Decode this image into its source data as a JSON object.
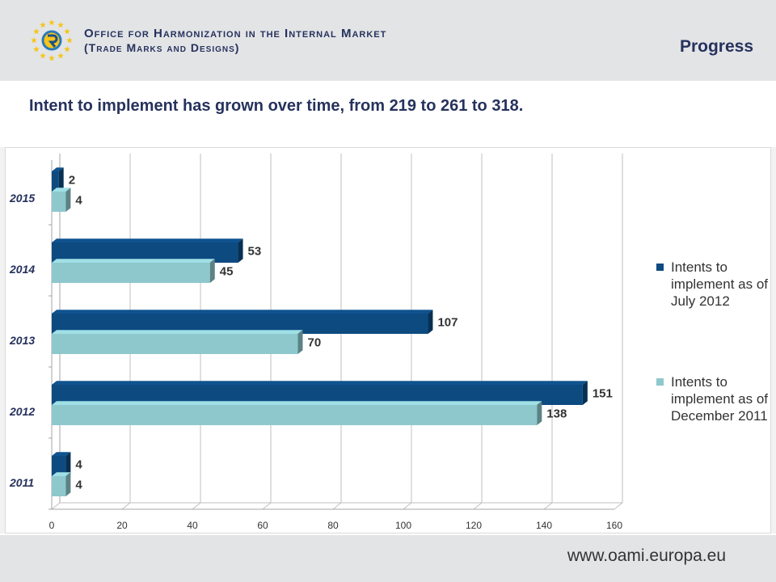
{
  "header": {
    "org_line_1": "Office for Harmonization in the Internal Market",
    "org_line_2": "(Trade Marks and Designs)",
    "section_title": "Progress"
  },
  "subtitle": "Intent to implement has grown over time, from 219 to 261 to 318.",
  "footer": {
    "url": "www.oami.europa.eu"
  },
  "colors": {
    "series_dark": "#0d4a80",
    "series_light": "#8ec8cd",
    "header_bg": "#e3e4e6",
    "title_text": "#26325d"
  },
  "chart_data": {
    "type": "bar",
    "orientation": "horizontal",
    "categories": [
      "2015",
      "2014",
      "2013",
      "2012",
      "2011"
    ],
    "series": [
      {
        "name": "Intents to implement as of July 2012",
        "values": [
          2,
          53,
          107,
          151,
          4
        ],
        "color": "#0d4a80"
      },
      {
        "name": "Intents to implement as of December 2011",
        "values": [
          4,
          45,
          70,
          138,
          4
        ],
        "color": "#8ec8cd"
      }
    ],
    "xlim": [
      0,
      160
    ],
    "xticks": [
      0,
      20,
      40,
      60,
      80,
      100,
      120,
      140,
      160
    ],
    "grid": true,
    "legend": "right"
  }
}
